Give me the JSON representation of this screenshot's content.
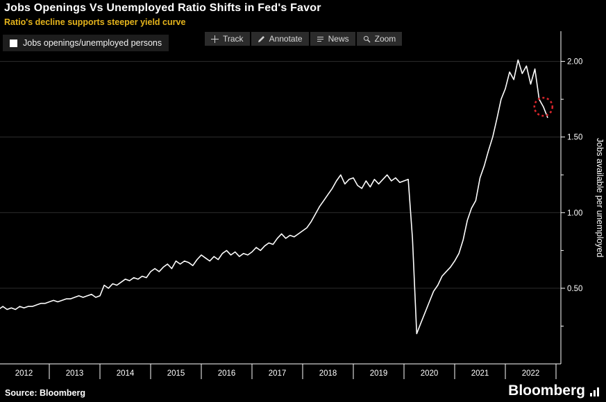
{
  "header": {
    "title": "Jobs Openings Vs Unemployed Ratio Shifts in Fed's Favor",
    "subtitle": "Ratio's decline supports steeper yield curve"
  },
  "legend": {
    "label": "Jobs openings/unemployed persons"
  },
  "toolbar": {
    "items": [
      {
        "label": "Track",
        "icon": "crosshair-icon"
      },
      {
        "label": "Annotate",
        "icon": "pencil-icon"
      },
      {
        "label": "News",
        "icon": "news-lines-icon"
      },
      {
        "label": "Zoom",
        "icon": "magnifier-icon"
      }
    ]
  },
  "source_text": "Source:  Bloomberg",
  "branding": {
    "logo_text": "Bloomberg"
  },
  "colors": {
    "background": "#000000",
    "subtitle": "#e5b41c",
    "line": "#ffffff",
    "annotation": "#d8262c",
    "gridline": "#2e2e2e"
  },
  "chart_data": {
    "type": "line",
    "title": "Jobs Openings Vs Unemployed Ratio Shifts in Fed's Favor",
    "subtitle": "Ratio's decline supports steeper yield curve",
    "y_axis_label": "Jobs available per unemployed",
    "xlabel": "",
    "grid": "horizontal",
    "legend_position": "top-left",
    "ylim": [
      0,
      2.2
    ],
    "x_tick_labels": [
      "2012",
      "2013",
      "2014",
      "2015",
      "2016",
      "2017",
      "2018",
      "2019",
      "2020",
      "2021",
      "2022"
    ],
    "y_ticks": [
      0.5,
      1.0,
      1.5,
      2.0
    ],
    "y_tick_labels": [
      "0.50",
      "1.00",
      "1.50",
      "2.00"
    ],
    "series": [
      {
        "name": "Jobs openings/unemployed persons",
        "color": "#ffffff",
        "frequency": "monthly",
        "x_start": "2012-01",
        "x_end": "2022-11",
        "values": [
          0.36,
          0.38,
          0.36,
          0.37,
          0.36,
          0.38,
          0.37,
          0.38,
          0.38,
          0.39,
          0.4,
          0.4,
          0.41,
          0.42,
          0.41,
          0.42,
          0.43,
          0.43,
          0.44,
          0.45,
          0.44,
          0.45,
          0.46,
          0.44,
          0.45,
          0.52,
          0.5,
          0.53,
          0.52,
          0.54,
          0.56,
          0.55,
          0.57,
          0.56,
          0.58,
          0.57,
          0.61,
          0.63,
          0.61,
          0.64,
          0.66,
          0.63,
          0.68,
          0.66,
          0.68,
          0.67,
          0.65,
          0.69,
          0.72,
          0.7,
          0.68,
          0.71,
          0.69,
          0.73,
          0.75,
          0.72,
          0.74,
          0.71,
          0.73,
          0.72,
          0.74,
          0.77,
          0.75,
          0.78,
          0.8,
          0.79,
          0.83,
          0.86,
          0.83,
          0.85,
          0.84,
          0.86,
          0.88,
          0.9,
          0.94,
          0.99,
          1.04,
          1.08,
          1.12,
          1.16,
          1.21,
          1.25,
          1.19,
          1.22,
          1.23,
          1.18,
          1.16,
          1.21,
          1.17,
          1.22,
          1.19,
          1.22,
          1.25,
          1.21,
          1.23,
          1.2,
          1.21,
          1.22,
          0.83,
          0.2,
          0.27,
          0.34,
          0.41,
          0.48,
          0.52,
          0.58,
          0.61,
          0.64,
          0.68,
          0.73,
          0.82,
          0.95,
          1.03,
          1.08,
          1.23,
          1.31,
          1.41,
          1.5,
          1.62,
          1.75,
          1.82,
          1.93,
          1.88,
          2.01,
          1.92,
          1.97,
          1.85,
          1.95,
          1.75,
          1.7,
          1.63
        ]
      }
    ],
    "annotation": {
      "type": "dashed-circle",
      "description": "highlights final decline of the ratio",
      "color": "#d8262c",
      "x_month_index": 129,
      "value": 1.7
    }
  }
}
